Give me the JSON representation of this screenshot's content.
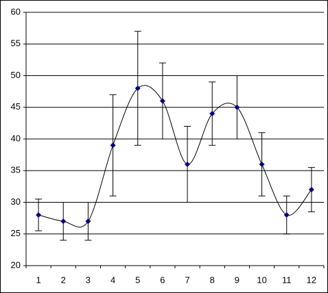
{
  "chart_data": {
    "type": "line",
    "categories": [
      "1",
      "2",
      "3",
      "4",
      "5",
      "6",
      "7",
      "8",
      "9",
      "10",
      "11",
      "12"
    ],
    "values": [
      28,
      27,
      27,
      39,
      48,
      46,
      36,
      44,
      45,
      36,
      28,
      32
    ],
    "errors": [
      2.5,
      3,
      3,
      8,
      9,
      6,
      6,
      5,
      5,
      5,
      3,
      3.5
    ],
    "color": "#000080",
    "line_color": "#000000",
    "smooth": true,
    "ylim": [
      20,
      60
    ],
    "yticks": [
      20,
      25,
      30,
      35,
      40,
      45,
      50,
      55,
      60
    ],
    "grid": true
  }
}
